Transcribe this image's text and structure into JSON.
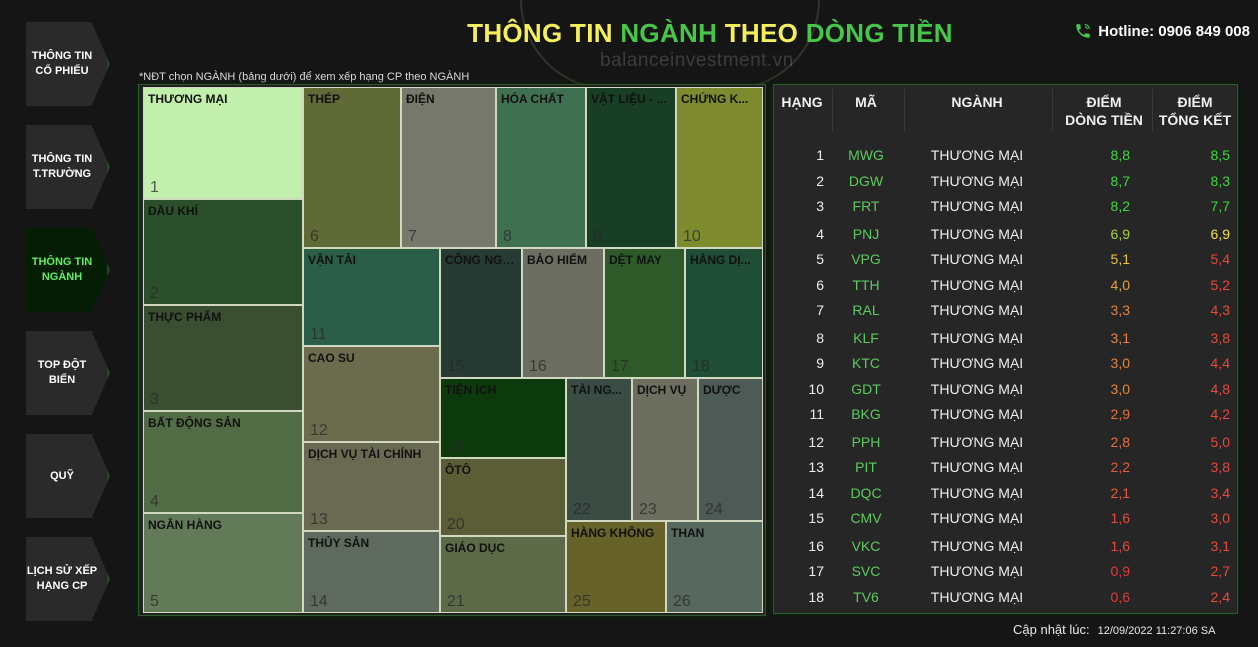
{
  "sidebar": {
    "items": [
      {
        "label": "THÔNG TIN CỔ PHIẾU",
        "active": false
      },
      {
        "label": "THÔNG TIN T.TRƯỜNG",
        "active": false
      },
      {
        "label": "THÔNG TIN NGÀNH",
        "active": true
      },
      {
        "label": "TOP ĐỘT BIẾN",
        "active": false
      },
      {
        "label": "QUỸ",
        "active": false
      },
      {
        "label": "LỊCH SỬ XẾP HẠNG CP",
        "active": false
      }
    ]
  },
  "header": {
    "title_part1": "THÔNG TIN ",
    "title_part2": "NGÀNH",
    "title_part3": " THEO ",
    "title_part4": "DÒNG TIỀN",
    "hotline": "Hotline: 0906 849 008",
    "watermark": "balanceinvestment.vn"
  },
  "note": "*NĐT chọn NGÀNH (bảng dưới) để xem xếp hạng CP theo NGÀNH",
  "treemap": {
    "tiles": [
      {
        "label": "THƯƠNG MẠI",
        "rank": "1",
        "color": "#c3efad"
      },
      {
        "label": "THÉP",
        "rank": "6",
        "color": "#5f6a36"
      },
      {
        "label": "ĐIỆN",
        "rank": "7",
        "color": "#76796b"
      },
      {
        "label": "HÓA CHẤT",
        "rank": "8",
        "color": "#3f7052"
      },
      {
        "label": "VẬT LIỆU - ...",
        "rank": "9",
        "color": "#183f26"
      },
      {
        "label": "CHỨNG K...",
        "rank": "10",
        "color": "#7d8a2e"
      },
      {
        "label": "DẦU KHÍ",
        "rank": "2",
        "color": "#2b4f2b"
      },
      {
        "label": "THỰC PHẨM",
        "rank": "3",
        "color": "#3a4e31"
      },
      {
        "label": "BẤT ĐỘNG SẢN",
        "rank": "4",
        "color": "#526d46"
      },
      {
        "label": "NGÂN HÀNG",
        "rank": "5",
        "color": "#637a58"
      },
      {
        "label": "VẬN TẢI",
        "rank": "11",
        "color": "#2b5e49"
      },
      {
        "label": "CÔNG NGHỆ",
        "rank": "15",
        "color": "#253b33"
      },
      {
        "label": "BẢO HIỂM",
        "rank": "16",
        "color": "#6c6e61"
      },
      {
        "label": "DỆT MAY",
        "rank": "17",
        "color": "#2e5a2a"
      },
      {
        "label": "HÀNG DỊ...",
        "rank": "18",
        "color": "#1f4d35"
      },
      {
        "label": "CAO SU",
        "rank": "12",
        "color": "#6b6c4e"
      },
      {
        "label": "TIỆN ÍCH",
        "rank": "19",
        "color": "#0d3a0d"
      },
      {
        "label": "TÀI NG...",
        "rank": "22",
        "color": "#3a4c44"
      },
      {
        "label": "DỊCH VỤ",
        "rank": "23",
        "color": "#6c6e5f"
      },
      {
        "label": "DƯỢC",
        "rank": "24",
        "color": "#4e5a55"
      },
      {
        "label": "DỊCH VỤ TÀI CHÍNH",
        "rank": "13",
        "color": "#6a6a52"
      },
      {
        "label": "ÔTÔ",
        "rank": "20",
        "color": "#5b5d36"
      },
      {
        "label": "THỦY SẢN",
        "rank": "14",
        "color": "#5f6a5e"
      },
      {
        "label": "GIÁO DỤC",
        "rank": "21",
        "color": "#5d6a48"
      },
      {
        "label": "HÀNG KHÔNG",
        "rank": "25",
        "color": "#666229"
      },
      {
        "label": "THAN",
        "rank": "26",
        "color": "#57685f"
      }
    ]
  },
  "table": {
    "headers": {
      "rank": "HẠNG",
      "code": "MÃ",
      "industry": "NGÀNH",
      "cashflow_1": "ĐIỂM",
      "cashflow_2": "DÒNG TIỀN",
      "total_1": "ĐIỂM",
      "total_2": "TỔNG KẾT"
    },
    "rows": [
      {
        "rank": "1",
        "code": "MWG",
        "industry": "THƯƠNG MẠI",
        "cashflow": "8,8",
        "total": "8,5",
        "cf_color": "#3cd93c",
        "tot_color": "#3cd93c"
      },
      {
        "rank": "2",
        "code": "DGW",
        "industry": "THƯƠNG MẠI",
        "cashflow": "8,7",
        "total": "8,3",
        "cf_color": "#3cd93c",
        "tot_color": "#3cd93c"
      },
      {
        "rank": "3",
        "code": "FRT",
        "industry": "THƯƠNG MẠI",
        "cashflow": "8,2",
        "total": "7,7",
        "cf_color": "#3cd93c",
        "tot_color": "#3cd93c"
      },
      {
        "rank": "4",
        "code": "PNJ",
        "industry": "THƯƠNG MẠI",
        "cashflow": "6,9",
        "total": "6,9",
        "cf_color": "#a6d63a",
        "tot_color": "#f2e24a"
      },
      {
        "rank": "5",
        "code": "VPG",
        "industry": "THƯƠNG MẠI",
        "cashflow": "5,1",
        "total": "5,4",
        "cf_color": "#e8c43a",
        "tot_color": "#e64a3a"
      },
      {
        "rank": "6",
        "code": "TTH",
        "industry": "THƯƠNG MẠI",
        "cashflow": "4,0",
        "total": "5,2",
        "cf_color": "#e8a03a",
        "tot_color": "#e64a3a"
      },
      {
        "rank": "7",
        "code": "RAL",
        "industry": "THƯƠNG MẠI",
        "cashflow": "3,3",
        "total": "4,3",
        "cf_color": "#e8843a",
        "tot_color": "#e64a3a"
      },
      {
        "rank": "8",
        "code": "KLF",
        "industry": "THƯƠNG MẠI",
        "cashflow": "3,1",
        "total": "3,8",
        "cf_color": "#e8843a",
        "tot_color": "#e64a3a"
      },
      {
        "rank": "9",
        "code": "KTC",
        "industry": "THƯƠNG MẠI",
        "cashflow": "3,0",
        "total": "4,4",
        "cf_color": "#e8843a",
        "tot_color": "#e64a3a"
      },
      {
        "rank": "10",
        "code": "GDT",
        "industry": "THƯƠNG MẠI",
        "cashflow": "3,0",
        "total": "4,8",
        "cf_color": "#e8843a",
        "tot_color": "#e64a3a"
      },
      {
        "rank": "11",
        "code": "BKG",
        "industry": "THƯƠNG MẠI",
        "cashflow": "2,9",
        "total": "4,2",
        "cf_color": "#e8703a",
        "tot_color": "#e64a3a"
      },
      {
        "rank": "12",
        "code": "PPH",
        "industry": "THƯƠNG MẠI",
        "cashflow": "2,8",
        "total": "5,0",
        "cf_color": "#e8703a",
        "tot_color": "#e64a3a"
      },
      {
        "rank": "13",
        "code": "PIT",
        "industry": "THƯƠNG MẠI",
        "cashflow": "2,2",
        "total": "3,8",
        "cf_color": "#e85a3a",
        "tot_color": "#e64a3a"
      },
      {
        "rank": "14",
        "code": "DQC",
        "industry": "THƯƠNG MẠI",
        "cashflow": "2,1",
        "total": "3,4",
        "cf_color": "#e85a3a",
        "tot_color": "#e64a3a"
      },
      {
        "rank": "15",
        "code": "CMV",
        "industry": "THƯƠNG MẠI",
        "cashflow": "1,6",
        "total": "3,0",
        "cf_color": "#e64a3a",
        "tot_color": "#e64a3a"
      },
      {
        "rank": "16",
        "code": "VKC",
        "industry": "THƯƠNG MẠI",
        "cashflow": "1,6",
        "total": "3,1",
        "cf_color": "#e64a3a",
        "tot_color": "#e64a3a"
      },
      {
        "rank": "17",
        "code": "SVC",
        "industry": "THƯƠNG MẠI",
        "cashflow": "0,9",
        "total": "2,7",
        "cf_color": "#e23a3a",
        "tot_color": "#e64a3a"
      },
      {
        "rank": "18",
        "code": "TV6",
        "industry": "THƯƠNG MẠI",
        "cashflow": "0,6",
        "total": "2,4",
        "cf_color": "#e23a3a",
        "tot_color": "#e64a3a"
      }
    ]
  },
  "footer": {
    "updated_label": "Cập nhật lúc:",
    "updated_time": "12/09/2022 11:27:06 SA"
  }
}
